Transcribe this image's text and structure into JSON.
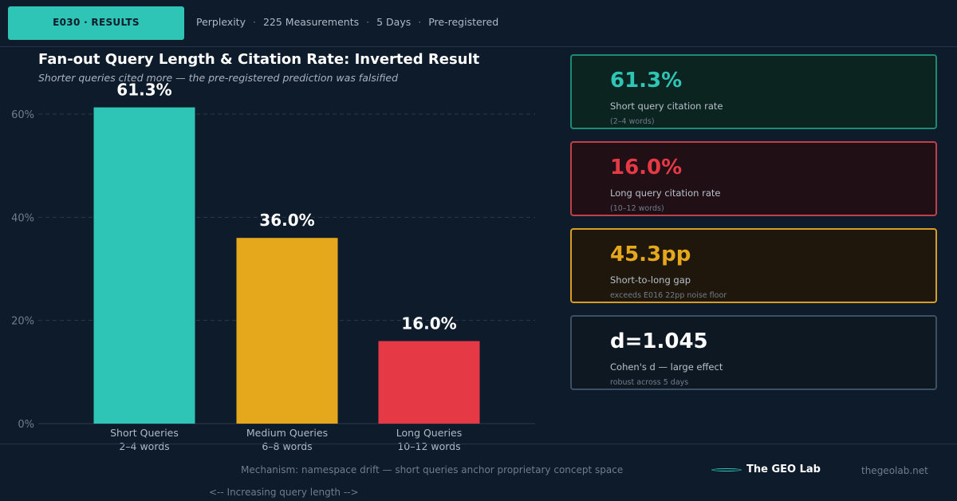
{
  "header": {
    "badge": "E030 · RESULTS",
    "meta": [
      "Perplexity",
      "225 Measurements",
      "5 Days",
      "Pre-registered"
    ]
  },
  "chart_data": {
    "type": "bar",
    "title": "Fan-out Query Length & Citation Rate: Inverted Result",
    "subtitle": "Shorter queries cited more — the pre-registered prediction was falsified",
    "categories": [
      "Short Queries",
      "Medium Queries",
      "Long Queries"
    ],
    "category_sublabels": [
      "2–4 words",
      "6–8 words",
      "10–12 words"
    ],
    "values": [
      61.3,
      36.0,
      16.0
    ],
    "data_labels": [
      "61.3%",
      "36.0%",
      "16.0%"
    ],
    "colors": [
      "#2ec4b6",
      "#e5a81c",
      "#e63946"
    ],
    "ylim": [
      0,
      60
    ],
    "yticks": [
      0,
      20,
      40,
      60
    ],
    "ytick_labels": [
      "0%",
      "20%",
      "40%",
      "60%"
    ],
    "grid": true,
    "x_note": "<-- Increasing query length -->"
  },
  "cards": [
    {
      "value": "61.3%",
      "label": "Short query citation rate",
      "note": "(2–4 words)",
      "color": "#2ec4b6",
      "bg": "#0b2420",
      "border": "#1f8a72"
    },
    {
      "value": "16.0%",
      "label": "Long query citation rate",
      "note": "(10–12 words)",
      "color": "#e63946",
      "bg": "#200f14",
      "border": "#c0404a"
    },
    {
      "value": "45.3pp",
      "label": "Short-to-long gap",
      "note": "exceeds E016 22pp noise floor",
      "color": "#e5a81c",
      "bg": "#1f170b",
      "border": "#d99d26"
    },
    {
      "value": "d=1.045",
      "label": "Cohen's d — large effect",
      "note": "robust across 5 days",
      "color": "#ffffff",
      "bg": "#0e1822",
      "border": "#3c5064"
    }
  ],
  "footer": {
    "mechanism": "Mechanism: namespace drift — short queries anchor proprietary concept space",
    "brand": "The GEO Lab",
    "site": "thegeolab.net"
  }
}
